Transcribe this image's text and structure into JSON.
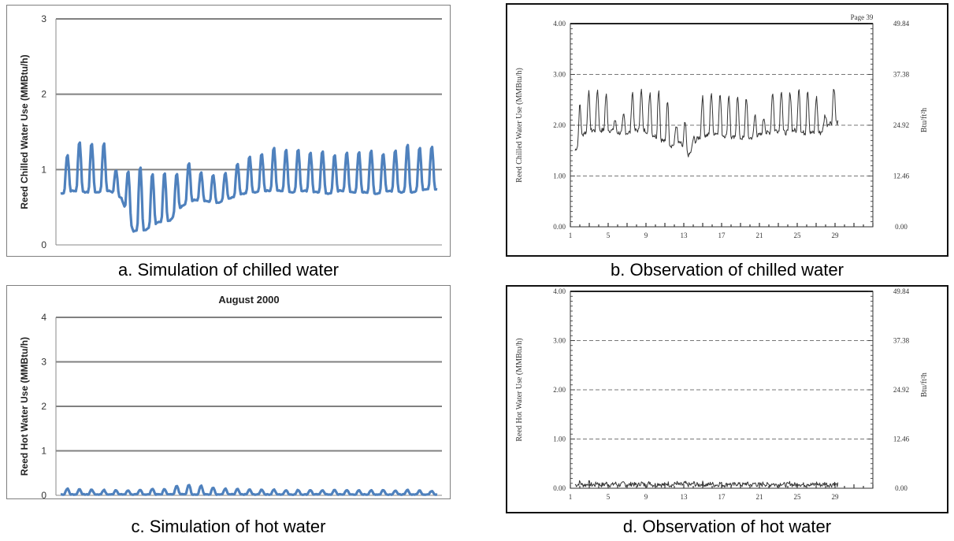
{
  "captions": {
    "a": "a. Simulation of chilled water",
    "b": "b. Observation of chilled water",
    "c": "c. Simulation of hot water",
    "d": "d. Observation of hot water"
  },
  "colors": {
    "simulation_line": "#4f81bd",
    "observation_line": "#333333",
    "gridline": "#808080"
  },
  "chart_data": [
    {
      "id": "a",
      "type": "line",
      "title": "",
      "ylabel": "Reed Chilled Water Use (MMBtu/h)",
      "xlabel": "",
      "ylim": [
        0,
        3
      ],
      "yticks": [
        "0",
        "1",
        "2",
        "3"
      ],
      "grid": true,
      "legend": "none",
      "x_range": [
        0,
        31
      ],
      "daily_peaks": [
        1.2,
        1.38,
        1.36,
        1.36,
        1.0,
        0.99,
        1.05,
        0.96,
        0.97,
        0.96,
        1.1,
        0.97,
        0.94,
        0.96,
        1.08,
        1.18,
        1.22,
        1.3,
        1.28,
        1.28,
        1.24,
        1.26,
        1.2,
        1.24,
        1.24,
        1.26,
        1.22,
        1.27,
        1.34,
        1.3,
        1.32
      ],
      "daily_troughs": [
        0.68,
        0.72,
        0.7,
        0.7,
        0.72,
        0.62,
        0.18,
        0.2,
        0.3,
        0.32,
        0.52,
        0.6,
        0.58,
        0.56,
        0.62,
        0.68,
        0.7,
        0.72,
        0.72,
        0.7,
        0.72,
        0.7,
        0.68,
        0.72,
        0.7,
        0.7,
        0.68,
        0.72,
        0.7,
        0.7,
        0.74
      ]
    },
    {
      "id": "b",
      "type": "line",
      "title": "",
      "annotation": "Page 39",
      "ylabel": "Reed Chilled Water Use (MMBtu/h)",
      "ylabel_right": "Btu/ft²h",
      "ylim": [
        0,
        4
      ],
      "yticks": [
        "0.00",
        "1.00",
        "2.00",
        "3.00",
        "4.00"
      ],
      "yticks_right": [
        "0.00",
        "12.46",
        "24.92",
        "37.38",
        "49.84"
      ],
      "xlim": [
        1,
        33
      ],
      "xticks": [
        1,
        5,
        9,
        13,
        17,
        21,
        25,
        29
      ],
      "grid": "dashed",
      "legend": "none",
      "x_range": [
        1.5,
        29.3
      ],
      "daily_peaks": [
        2.4,
        2.65,
        2.7,
        2.6,
        2.1,
        2.2,
        2.65,
        2.7,
        2.65,
        2.7,
        2.5,
        2.0,
        2.05,
        1.75,
        2.55,
        2.65,
        2.6,
        2.6,
        2.6,
        2.55,
        2.2,
        2.15,
        2.65,
        2.7,
        2.65,
        2.75,
        2.7,
        2.55,
        2.2,
        2.75
      ],
      "daily_troughs": [
        1.5,
        1.85,
        1.9,
        1.9,
        1.9,
        1.85,
        1.85,
        1.9,
        1.9,
        1.8,
        1.7,
        1.6,
        1.65,
        1.4,
        1.75,
        1.8,
        1.85,
        1.8,
        1.75,
        1.75,
        1.75,
        1.8,
        1.85,
        1.9,
        1.85,
        1.9,
        1.85,
        1.85,
        1.85,
        2.05
      ]
    },
    {
      "id": "c",
      "type": "line",
      "title": "August 2000",
      "ylabel": "Reed Hot Water Use (MMBtu/h)",
      "xlabel": "",
      "ylim": [
        0,
        4
      ],
      "yticks": [
        "0",
        "1",
        "2",
        "3",
        "4"
      ],
      "grid": true,
      "legend": "none",
      "x_range": [
        0,
        31
      ],
      "daily_peaks": [
        0.15,
        0.14,
        0.13,
        0.12,
        0.12,
        0.11,
        0.12,
        0.15,
        0.14,
        0.22,
        0.24,
        0.22,
        0.18,
        0.15,
        0.14,
        0.13,
        0.13,
        0.13,
        0.12,
        0.12,
        0.12,
        0.12,
        0.12,
        0.12,
        0.11,
        0.11,
        0.12,
        0.11,
        0.12,
        0.11,
        0.1
      ],
      "daily_troughs": [
        0.02,
        0.02,
        0.02,
        0.02,
        0.02,
        0.02,
        0.02,
        0.02,
        0.02,
        0.02,
        0.03,
        0.02,
        0.02,
        0.02,
        0.02,
        0.02,
        0.02,
        0.02,
        0.02,
        0.02,
        0.02,
        0.02,
        0.02,
        0.02,
        0.02,
        0.02,
        0.02,
        0.02,
        0.02,
        0.02,
        0.02
      ]
    },
    {
      "id": "d",
      "type": "line",
      "title": "",
      "ylabel": "Reed Hot Water Use (MMBtu/h)",
      "ylabel_right": "Btu/ft²h",
      "ylim": [
        0,
        4
      ],
      "yticks": [
        "0.00",
        "1.00",
        "2.00",
        "3.00",
        "4.00"
      ],
      "yticks_right": [
        "0.00",
        "12.46",
        "24.92",
        "37.38",
        "49.84"
      ],
      "xlim": [
        1,
        33
      ],
      "xticks": [
        1,
        5,
        9,
        13,
        17,
        21,
        25,
        29
      ],
      "grid": "dashed",
      "legend": "none",
      "x_range": [
        1.5,
        29.3
      ],
      "daily_peaks": [
        0.12,
        0.11,
        0.11,
        0.1,
        0.1,
        0.1,
        0.1,
        0.11,
        0.12,
        0.1,
        0.1,
        0.11,
        0.1,
        0.1,
        0.1,
        0.1,
        0.1,
        0.1,
        0.1,
        0.1,
        0.1,
        0.1,
        0.1,
        0.1,
        0.1,
        0.1,
        0.1,
        0.1,
        0.1,
        0.1
      ],
      "daily_troughs": [
        0.07,
        0.07,
        0.07,
        0.07,
        0.07,
        0.07,
        0.07,
        0.07,
        0.07,
        0.07,
        0.07,
        0.07,
        0.07,
        0.07,
        0.07,
        0.07,
        0.07,
        0.07,
        0.07,
        0.07,
        0.07,
        0.07,
        0.07,
        0.07,
        0.07,
        0.07,
        0.07,
        0.07,
        0.07,
        0.07
      ]
    }
  ]
}
